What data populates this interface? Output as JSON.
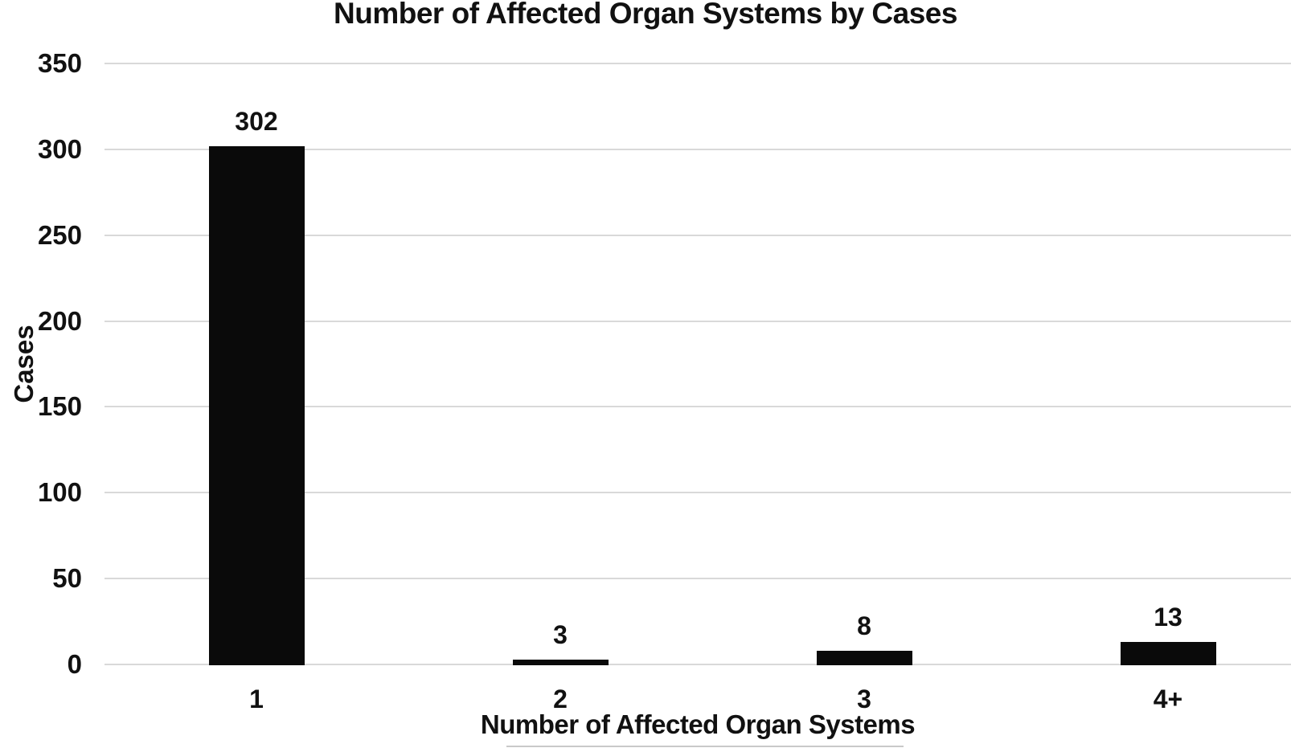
{
  "chart_data": {
    "type": "bar",
    "title": "Number of Affected Organ Systems by Cases",
    "xlabel": "Number of Affected Organ Systems",
    "ylabel": "Cases",
    "categories": [
      "1",
      "2",
      "3",
      "4+"
    ],
    "values": [
      302,
      3,
      8,
      13
    ],
    "yticks": [
      0,
      50,
      100,
      150,
      200,
      250,
      300,
      350
    ],
    "ylim": [
      0,
      350
    ],
    "grid": true,
    "legend_position": "none",
    "bar_color": "#0a0a0a",
    "gridline_color": "#d9d9d9",
    "background_color": "#ffffff",
    "text_color": "#111111"
  }
}
